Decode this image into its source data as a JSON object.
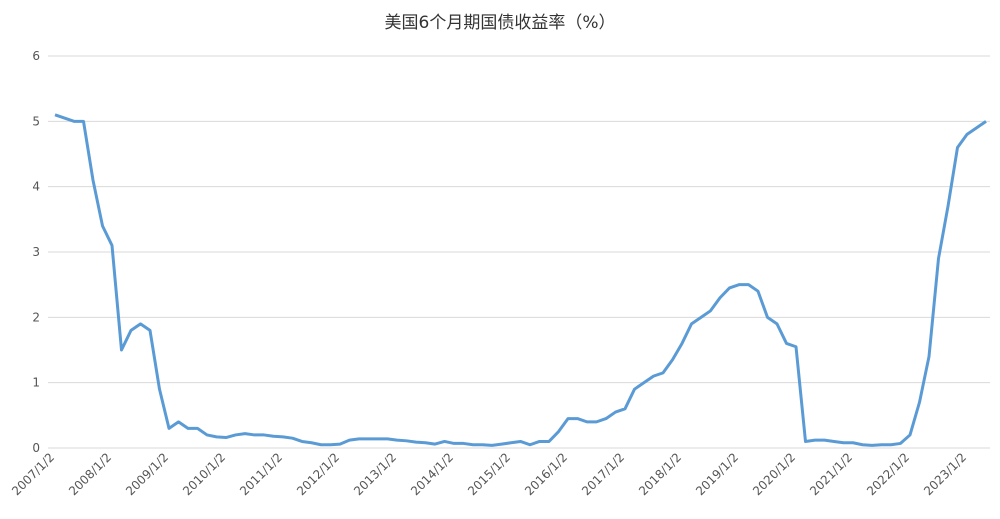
{
  "chart_data": {
    "type": "line",
    "title": "美国6个月期国债收益率（%）",
    "categories": [
      "2007/1/2",
      null,
      null,
      null,
      null,
      null,
      "2008/1/2",
      null,
      null,
      null,
      null,
      null,
      "2009/1/2",
      null,
      null,
      null,
      null,
      null,
      "2010/1/2",
      null,
      null,
      null,
      null,
      null,
      "2011/1/2",
      null,
      null,
      null,
      null,
      null,
      "2012/1/2",
      null,
      null,
      null,
      null,
      null,
      "2013/1/2",
      null,
      null,
      null,
      null,
      null,
      "2014/1/2",
      null,
      null,
      null,
      null,
      null,
      "2015/1/2",
      null,
      null,
      null,
      null,
      null,
      "2016/1/2",
      null,
      null,
      null,
      null,
      null,
      "2017/1/2",
      null,
      null,
      null,
      null,
      null,
      "2018/1/2",
      null,
      null,
      null,
      null,
      null,
      "2019/1/2",
      null,
      null,
      null,
      null,
      null,
      "2020/1/2",
      null,
      null,
      null,
      null,
      null,
      "2021/1/2",
      null,
      null,
      null,
      null,
      null,
      "2022/1/2",
      null,
      null,
      null,
      null,
      null,
      "2023/1/2",
      null,
      null
    ],
    "series": [
      {
        "name": "美国6个月期国债收益率",
        "color": "#5b9bd5",
        "values": [
          5.1,
          5.05,
          5.0,
          5.0,
          4.1,
          3.4,
          3.1,
          1.5,
          1.8,
          1.9,
          1.8,
          0.9,
          0.3,
          0.4,
          0.3,
          0.3,
          0.2,
          0.17,
          0.16,
          0.2,
          0.22,
          0.2,
          0.2,
          0.18,
          0.17,
          0.15,
          0.1,
          0.08,
          0.05,
          0.05,
          0.06,
          0.12,
          0.14,
          0.14,
          0.14,
          0.14,
          0.12,
          0.11,
          0.09,
          0.08,
          0.06,
          0.1,
          0.07,
          0.07,
          0.05,
          0.05,
          0.04,
          0.06,
          0.08,
          0.1,
          0.05,
          0.1,
          0.1,
          0.25,
          0.45,
          0.45,
          0.4,
          0.4,
          0.45,
          0.55,
          0.6,
          0.9,
          1.0,
          1.1,
          1.15,
          1.35,
          1.6,
          1.9,
          2.0,
          2.1,
          2.3,
          2.45,
          2.5,
          2.5,
          2.4,
          2.0,
          1.9,
          1.6,
          1.55,
          0.1,
          0.12,
          0.12,
          0.1,
          0.08,
          0.08,
          0.05,
          0.04,
          0.05,
          0.05,
          0.07,
          0.2,
          0.7,
          1.4,
          2.9,
          3.7,
          4.6,
          4.8,
          4.9,
          5.0
        ]
      }
    ],
    "ylim": [
      0,
      6
    ],
    "yticks": [
      0,
      1,
      2,
      3,
      4,
      5,
      6
    ],
    "grid": true
  }
}
